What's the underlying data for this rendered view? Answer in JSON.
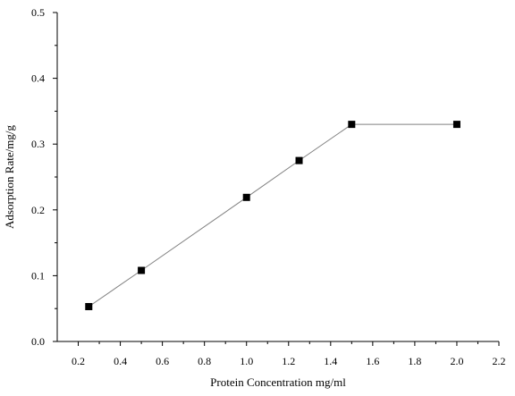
{
  "chart_data": {
    "type": "line",
    "xlabel": "Protein Concentration mg/ml",
    "ylabel": "Adsorption Rate/mg/g",
    "xlim": [
      0.1,
      2.2
    ],
    "ylim": [
      0.0,
      0.5
    ],
    "x_ticks": [
      0.2,
      0.4,
      0.6,
      0.8,
      1.0,
      1.2,
      1.4,
      1.6,
      1.8,
      2.0,
      2.2
    ],
    "x_tick_labels": [
      "0.2",
      "0.4",
      "0.6",
      "0.8",
      "1.0",
      "1.2",
      "1.4",
      "1.6",
      "1.8",
      "2.0",
      "2.2"
    ],
    "y_ticks": [
      0.0,
      0.1,
      0.2,
      0.3,
      0.4,
      0.5
    ],
    "y_tick_labels": [
      "0.0",
      "0.1",
      "0.2",
      "0.3",
      "0.4",
      "0.5"
    ],
    "grid": false,
    "series": [
      {
        "x": [
          0.25,
          0.5,
          1.0,
          1.25,
          1.5,
          2.0
        ],
        "y": [
          0.053,
          0.108,
          0.219,
          0.275,
          0.33,
          0.33
        ],
        "color": "#808080",
        "marker": "square",
        "marker_color": "#000000"
      }
    ]
  }
}
